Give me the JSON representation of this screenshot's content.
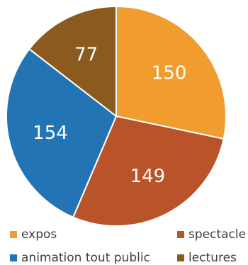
{
  "chart_data": {
    "type": "pie",
    "title": "",
    "slices": [
      {
        "label": "expos",
        "value": 150,
        "color": "#F19C2F"
      },
      {
        "label": "spectacle",
        "value": 149,
        "color": "#B9532A"
      },
      {
        "label": "animation tout public",
        "value": 154,
        "color": "#2374B4"
      },
      {
        "label": "lectures",
        "value": 77,
        "color": "#8B5A1E"
      }
    ],
    "start": "12 o'clock",
    "direction": "clockwise",
    "data_labels": "inside",
    "legend": "bottom"
  }
}
